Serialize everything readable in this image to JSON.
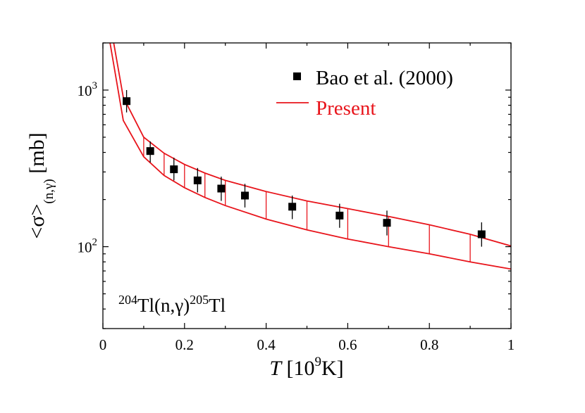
{
  "chart_data": {
    "type": "scatter",
    "title": "",
    "xlabel": {
      "italic": "T",
      "rest": " [10",
      "sup": "9",
      "tail": "K]"
    },
    "ylabel": {
      "pre": "<σ>",
      "sub": "(n,γ)",
      "post": " [mb]"
    },
    "xlim": [
      0,
      1
    ],
    "ylim": [
      30,
      2000
    ],
    "yscale": "log",
    "grid": false,
    "legend_position": "top-right",
    "x_ticks": [
      {
        "value": 0,
        "label": "0"
      },
      {
        "value": 0.2,
        "label": "0.2"
      },
      {
        "value": 0.4,
        "label": "0.4"
      },
      {
        "value": 0.6,
        "label": "0.6"
      },
      {
        "value": 0.8,
        "label": "0.8"
      },
      {
        "value": 1,
        "label": "1"
      }
    ],
    "y_major_ticks": [
      {
        "value": 100,
        "base": "10",
        "exp": "2"
      },
      {
        "value": 1000,
        "base": "10",
        "exp": "3"
      }
    ],
    "annotation": {
      "sup1": "204",
      "t1": "Tl(n,γ)",
      "sup2": "205",
      "t2": "Tl"
    },
    "series": [
      {
        "name": "Bao et al. (2000)",
        "kind": "points",
        "color": "#000000",
        "points": [
          {
            "x": 0.058,
            "y": 850,
            "lo": 720,
            "hi": 1000
          },
          {
            "x": 0.116,
            "y": 408,
            "lo": 345,
            "hi": 470
          },
          {
            "x": 0.174,
            "y": 312,
            "lo": 265,
            "hi": 370
          },
          {
            "x": 0.232,
            "y": 265,
            "lo": 222,
            "hi": 318
          },
          {
            "x": 0.29,
            "y": 235,
            "lo": 196,
            "hi": 280
          },
          {
            "x": 0.348,
            "y": 212,
            "lo": 178,
            "hi": 252
          },
          {
            "x": 0.464,
            "y": 180,
            "lo": 150,
            "hi": 212
          },
          {
            "x": 0.58,
            "y": 158,
            "lo": 132,
            "hi": 188
          },
          {
            "x": 0.696,
            "y": 142,
            "lo": 118,
            "hi": 170
          },
          {
            "x": 0.928,
            "y": 120,
            "lo": 100,
            "hi": 143
          }
        ]
      },
      {
        "name": "Present",
        "kind": "band",
        "color": "#e8141b",
        "upper": [
          [
            0.01,
            3500
          ],
          [
            0.05,
            900
          ],
          [
            0.1,
            500
          ],
          [
            0.15,
            395
          ],
          [
            0.2,
            335
          ],
          [
            0.25,
            295
          ],
          [
            0.3,
            265
          ],
          [
            0.4,
            225
          ],
          [
            0.5,
            196
          ],
          [
            0.6,
            175
          ],
          [
            0.7,
            156
          ],
          [
            0.8,
            138
          ],
          [
            0.9,
            120
          ],
          [
            1.0,
            101
          ]
        ],
        "lower": [
          [
            0.01,
            2600
          ],
          [
            0.05,
            640
          ],
          [
            0.1,
            375
          ],
          [
            0.15,
            285
          ],
          [
            0.2,
            238
          ],
          [
            0.25,
            206
          ],
          [
            0.3,
            183
          ],
          [
            0.4,
            150
          ],
          [
            0.5,
            128
          ],
          [
            0.6,
            112
          ],
          [
            0.7,
            100
          ],
          [
            0.8,
            90
          ],
          [
            0.9,
            80
          ],
          [
            1.0,
            72
          ]
        ],
        "hatch_x": [
          0.1,
          0.15,
          0.2,
          0.25,
          0.3,
          0.4,
          0.5,
          0.6,
          0.7,
          0.8,
          0.9
        ]
      }
    ]
  }
}
